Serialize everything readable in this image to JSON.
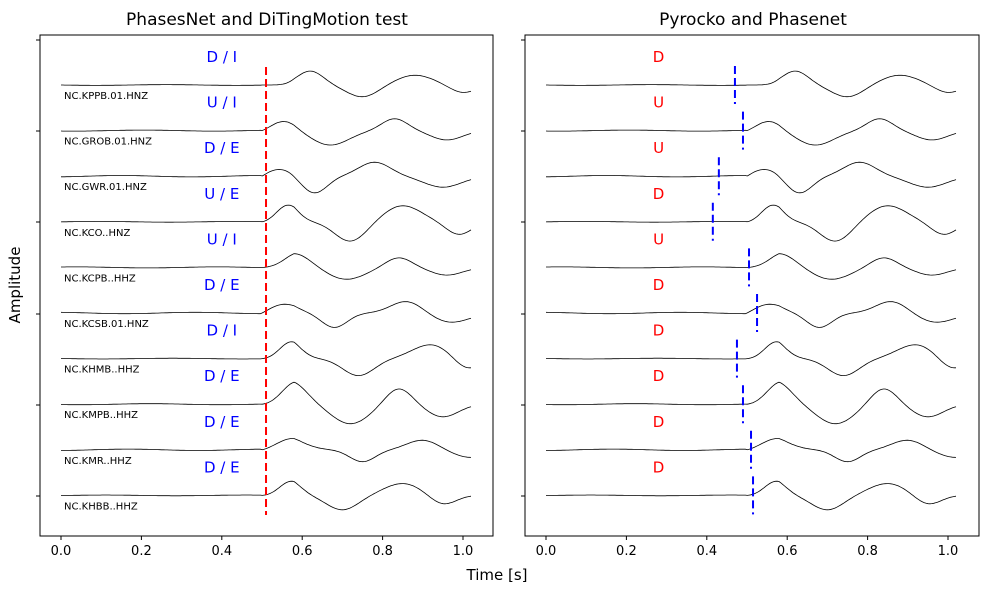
{
  "figure": {
    "ylabel": "Amplitude",
    "xlabel": "Time [s]"
  },
  "chart_data": [
    {
      "type": "line",
      "title": "PhasesNet and DiTingMotion test",
      "xlim": [
        -0.05,
        1.07
      ],
      "xticks": [
        0.0,
        0.2,
        0.4,
        0.6,
        0.8,
        1.0
      ],
      "xtick_labels": [
        "0.0",
        "0.2",
        "0.4",
        "0.6",
        "0.8",
        "1.0"
      ],
      "pick_color": "#ff0000",
      "label_color": "#0000ff",
      "trace_color": "#000000",
      "pick_style": "single dashed red vertical line at t=0.51 s spanning all traces",
      "pick_time": 0.51,
      "traces": [
        {
          "station": "NC.KPPB.01.HNZ",
          "label": "D / I"
        },
        {
          "station": "NC.GROB.01.HNZ",
          "label": "U / I"
        },
        {
          "station": "NC.GWR.01.HNZ",
          "label": "D / E"
        },
        {
          "station": "NC.KCO..HNZ",
          "label": "U / E"
        },
        {
          "station": "NC.KCPB..HHZ",
          "label": "U / I"
        },
        {
          "station": "NC.KCSB.01.HNZ",
          "label": "D / E"
        },
        {
          "station": "NC.KHMB..HHZ",
          "label": "D / I"
        },
        {
          "station": "NC.KMPB..HHZ",
          "label": "D / E"
        },
        {
          "station": "NC.KMR..HHZ",
          "label": "D / E"
        },
        {
          "station": "NC.KHBB..HHZ",
          "label": "D / E"
        }
      ]
    },
    {
      "type": "line",
      "title": "Pyrocko and Phasenet",
      "xlim": [
        -0.05,
        1.07
      ],
      "xticks": [
        0.0,
        0.2,
        0.4,
        0.6,
        0.8,
        1.0
      ],
      "xtick_labels": [
        "0.0",
        "0.2",
        "0.4",
        "0.6",
        "0.8",
        "1.0"
      ],
      "pick_color": "#0000ff",
      "label_color": "#ff0000",
      "trace_color": "#000000",
      "pick_style": "short dashed blue vertical tick per trace at each pick time",
      "traces": [
        {
          "label": "D",
          "pick_time": 0.47
        },
        {
          "label": "U",
          "pick_time": 0.49
        },
        {
          "label": "U",
          "pick_time": 0.43
        },
        {
          "label": "D",
          "pick_time": 0.415
        },
        {
          "label": "U",
          "pick_time": 0.505
        },
        {
          "label": "D",
          "pick_time": 0.525
        },
        {
          "label": "D",
          "pick_time": 0.475
        },
        {
          "label": "D",
          "pick_time": 0.49
        },
        {
          "label": "D",
          "pick_time": 0.51
        },
        {
          "label": "D",
          "pick_time": 0.515
        }
      ]
    }
  ]
}
